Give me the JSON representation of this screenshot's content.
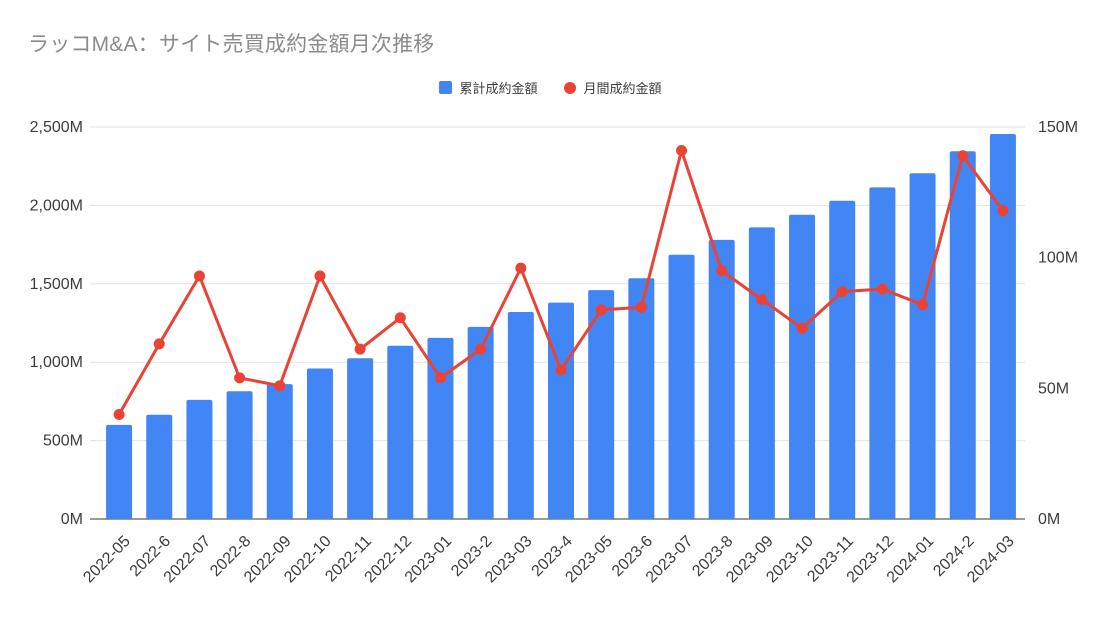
{
  "title": "ラッコM&A：サイト売買成約金額月次推移",
  "legend": {
    "items": [
      {
        "label": "累計成約金額",
        "marker": "square",
        "color": "#4285f4"
      },
      {
        "label": "月間成約金額",
        "marker": "circle",
        "color": "#ea4335"
      }
    ]
  },
  "chart_data": {
    "type": "bar",
    "subtype": "combo-bar-line",
    "title": "ラッコM&A：サイト売買成約金額月次推移",
    "categories": [
      "2022-05",
      "2022-6",
      "2022-07",
      "2022-8",
      "2022-09",
      "2022-10",
      "2022-11",
      "2022-12",
      "2023-01",
      "2023-2",
      "2023-03",
      "2023-4",
      "2023-05",
      "2023-6",
      "2023-07",
      "2023-8",
      "2023-09",
      "2023-10",
      "2023-11",
      "2023-12",
      "2024-01",
      "2024-2",
      "2024-03"
    ],
    "series": [
      {
        "name": "累計成約金額",
        "type": "bar",
        "axis": "left",
        "color": "#4285f4",
        "values": [
          600,
          665,
          760,
          815,
          860,
          960,
          1025,
          1105,
          1155,
          1225,
          1320,
          1380,
          1460,
          1535,
          1685,
          1780,
          1860,
          1940,
          2030,
          2115,
          2205,
          2345,
          2455
        ]
      },
      {
        "name": "月間成約金額",
        "type": "line",
        "axis": "right",
        "color": "#ea4335",
        "values": [
          40,
          67,
          93,
          54,
          51,
          93,
          65,
          77,
          54,
          65,
          96,
          57,
          80,
          81,
          141,
          95,
          84,
          73,
          87,
          88,
          82,
          139,
          118
        ]
      }
    ],
    "left_axis": {
      "min": 0,
      "max": 2500,
      "tick_values": [
        0,
        500,
        1000,
        1500,
        2000,
        2500
      ],
      "tick_labels": [
        "0M",
        "500M",
        "1,000M",
        "1,500M",
        "2,000M",
        "2,500M"
      ]
    },
    "right_axis": {
      "min": 0,
      "max": 150,
      "tick_values": [
        0,
        50,
        100,
        150
      ],
      "tick_labels": [
        "0M",
        "50M",
        "100M",
        "150M"
      ]
    },
    "grid": true,
    "legend_position": "top",
    "xlabel": "",
    "ylabel": ""
  },
  "colors": {
    "bar": "#4285f4",
    "line": "#ea4335",
    "grid": "#e3e3e3",
    "axis_line": "#333333",
    "tick_text": "#3c3c3c",
    "title_text": "#8b8b8b",
    "background": "#ffffff"
  }
}
